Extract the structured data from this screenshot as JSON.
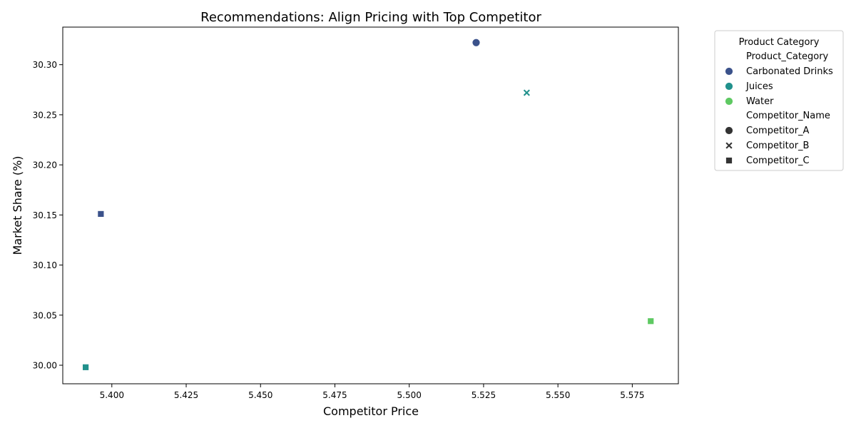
{
  "chart_data": {
    "type": "scatter",
    "title": "Recommendations: Align Pricing with Top Competitor",
    "xlabel": "Competitor Price",
    "ylabel": "Market Share (%)",
    "xlim": [
      5.3835,
      5.5905
    ],
    "ylim": [
      29.9815,
      30.3375
    ],
    "xticks": [
      5.4,
      5.425,
      5.45,
      5.475,
      5.5,
      5.525,
      5.55,
      5.575
    ],
    "xtick_labels": [
      "5.400",
      "5.425",
      "5.450",
      "5.475",
      "5.500",
      "5.525",
      "5.550",
      "5.575"
    ],
    "yticks": [
      30.0,
      30.05,
      30.1,
      30.15,
      30.2,
      30.25,
      30.3
    ],
    "ytick_labels": [
      "30.00",
      "30.05",
      "30.10",
      "30.15",
      "30.20",
      "30.25",
      "30.30"
    ],
    "grid": false,
    "legend": {
      "title": "Product Category",
      "placement": "outside-top-right",
      "hue_title": "Product_Category",
      "style_title": "Competitor_Name",
      "hue_entries": [
        {
          "label": "Carbonated Drinks",
          "color": "#3b528b"
        },
        {
          "label": "Juices",
          "color": "#21918c"
        },
        {
          "label": "Water",
          "color": "#5ec962"
        }
      ],
      "style_entries": [
        {
          "label": "Competitor_A",
          "marker": "circle"
        },
        {
          "label": "Competitor_B",
          "marker": "x"
        },
        {
          "label": "Competitor_C",
          "marker": "square"
        }
      ]
    },
    "points": [
      {
        "x": 5.5225,
        "y": 30.322,
        "category": "Carbonated Drinks",
        "competitor": "Competitor_A"
      },
      {
        "x": 5.5395,
        "y": 30.272,
        "category": "Juices",
        "competitor": "Competitor_B"
      },
      {
        "x": 5.3963,
        "y": 30.151,
        "category": "Carbonated Drinks",
        "competitor": "Competitor_C"
      },
      {
        "x": 5.5812,
        "y": 30.044,
        "category": "Water",
        "competitor": "Competitor_C"
      },
      {
        "x": 5.3912,
        "y": 29.998,
        "category": "Juices",
        "competitor": "Competitor_C"
      }
    ]
  }
}
